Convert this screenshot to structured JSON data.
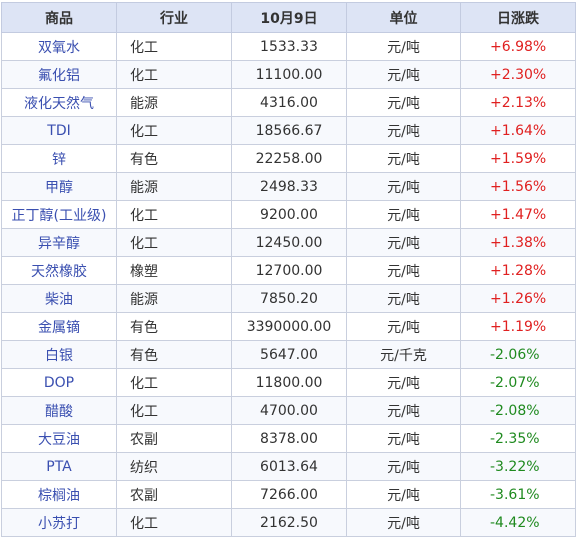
{
  "colors": {
    "up": "#e02020",
    "down": "#1f8a1f",
    "header_bg": "#dde4f5",
    "name_link": "#3a4fb0"
  },
  "table": {
    "headers": [
      "商品",
      "行业",
      "10月9日",
      "单位",
      "日涨跌"
    ],
    "rows": [
      {
        "name": "双氧水",
        "industry": "化工",
        "price": "1533.33",
        "unit": "元/吨",
        "change": "+6.98%",
        "dir": "up"
      },
      {
        "name": "氟化铝",
        "industry": "化工",
        "price": "11100.00",
        "unit": "元/吨",
        "change": "+2.30%",
        "dir": "up"
      },
      {
        "name": "液化天然气",
        "industry": "能源",
        "price": "4316.00",
        "unit": "元/吨",
        "change": "+2.13%",
        "dir": "up"
      },
      {
        "name": "TDI",
        "industry": "化工",
        "price": "18566.67",
        "unit": "元/吨",
        "change": "+1.64%",
        "dir": "up"
      },
      {
        "name": "锌",
        "industry": "有色",
        "price": "22258.00",
        "unit": "元/吨",
        "change": "+1.59%",
        "dir": "up"
      },
      {
        "name": "甲醇",
        "industry": "能源",
        "price": "2498.33",
        "unit": "元/吨",
        "change": "+1.56%",
        "dir": "up"
      },
      {
        "name": "正丁醇(工业级)",
        "industry": "化工",
        "price": "9200.00",
        "unit": "元/吨",
        "change": "+1.47%",
        "dir": "up"
      },
      {
        "name": "异辛醇",
        "industry": "化工",
        "price": "12450.00",
        "unit": "元/吨",
        "change": "+1.38%",
        "dir": "up"
      },
      {
        "name": "天然橡胶",
        "industry": "橡塑",
        "price": "12700.00",
        "unit": "元/吨",
        "change": "+1.28%",
        "dir": "up"
      },
      {
        "name": "柴油",
        "industry": "能源",
        "price": "7850.20",
        "unit": "元/吨",
        "change": "+1.26%",
        "dir": "up"
      },
      {
        "name": "金属镝",
        "industry": "有色",
        "price": "3390000.00",
        "unit": "元/吨",
        "change": "+1.19%",
        "dir": "up"
      },
      {
        "name": "白银",
        "industry": "有色",
        "price": "5647.00",
        "unit": "元/千克",
        "change": "-2.06%",
        "dir": "down"
      },
      {
        "name": "DOP",
        "industry": "化工",
        "price": "11800.00",
        "unit": "元/吨",
        "change": "-2.07%",
        "dir": "down"
      },
      {
        "name": "醋酸",
        "industry": "化工",
        "price": "4700.00",
        "unit": "元/吨",
        "change": "-2.08%",
        "dir": "down"
      },
      {
        "name": "大豆油",
        "industry": "农副",
        "price": "8378.00",
        "unit": "元/吨",
        "change": "-2.35%",
        "dir": "down"
      },
      {
        "name": "PTA",
        "industry": "纺织",
        "price": "6013.64",
        "unit": "元/吨",
        "change": "-3.22%",
        "dir": "down"
      },
      {
        "name": "棕榈油",
        "industry": "农副",
        "price": "7266.00",
        "unit": "元/吨",
        "change": "-3.61%",
        "dir": "down"
      },
      {
        "name": "小苏打",
        "industry": "化工",
        "price": "2162.50",
        "unit": "元/吨",
        "change": "-4.42%",
        "dir": "down"
      }
    ]
  }
}
